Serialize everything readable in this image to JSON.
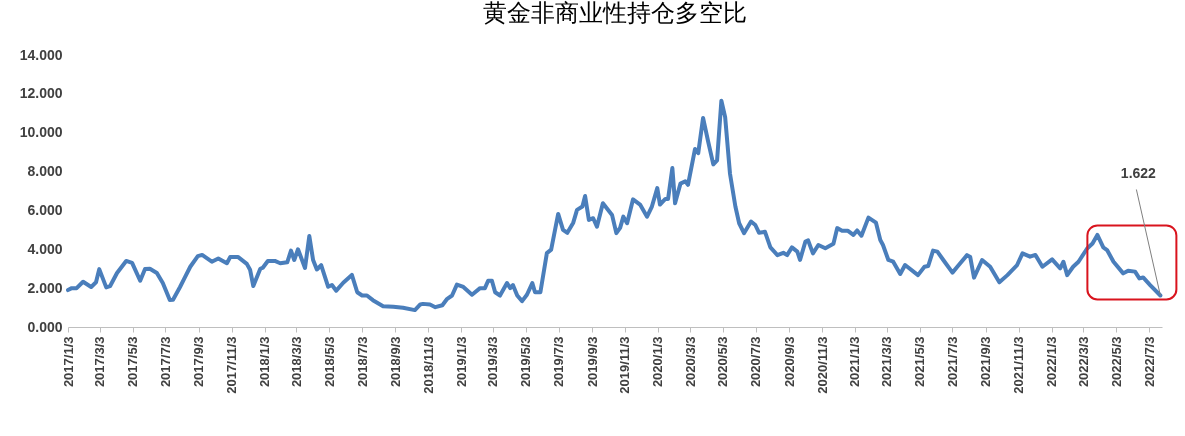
{
  "chart_data": {
    "type": "line",
    "title": "黄金非商业性持仓多空比",
    "color": "#4a7ebb",
    "x": [
      "2017-01-03",
      "2017-01-10",
      "2017-01-19",
      "2017-01-31",
      "2017-02-15",
      "2017-02-24",
      "2017-03-02",
      "2017-03-15",
      "2017-03-22",
      "2017-04-04",
      "2017-04-21",
      "2017-05-02",
      "2017-05-17",
      "2017-05-26",
      "2017-06-04",
      "2017-06-17",
      "2017-06-28",
      "2017-07-11",
      "2017-07-17",
      "2017-07-30",
      "2017-08-08",
      "2017-08-18",
      "2017-09-01",
      "2017-09-09",
      "2017-09-27",
      "2017-10-09",
      "2017-10-25",
      "2017-10-31",
      "2017-11-15",
      "2017-12-01",
      "2017-12-07",
      "2017-12-13",
      "2017-12-26",
      "2017-12-31",
      "2018-01-09",
      "2018-01-22",
      "2018-02-01",
      "2018-02-14",
      "2018-02-21",
      "2018-02-27",
      "2018-03-06",
      "2018-03-19",
      "2018-03-27",
      "2018-04-03",
      "2018-04-10",
      "2018-04-18",
      "2018-05-01",
      "2018-05-08",
      "2018-05-16",
      "2018-05-29",
      "2018-06-14",
      "2018-06-24",
      "2018-07-03",
      "2018-07-12",
      "2018-07-23",
      "2018-08-11",
      "2018-08-30",
      "2018-09-17",
      "2018-10-09",
      "2018-10-19",
      "2018-10-24",
      "2018-11-06",
      "2018-11-16",
      "2018-11-29",
      "2018-12-08",
      "2018-12-17",
      "2018-12-26",
      "2019-01-07",
      "2019-01-23",
      "2019-02-07",
      "2019-02-16",
      "2019-02-22",
      "2019-03-01",
      "2019-03-07",
      "2019-03-16",
      "2019-03-29",
      "2019-04-04",
      "2019-04-09",
      "2019-04-17",
      "2019-04-26",
      "2019-05-05",
      "2019-05-15",
      "2019-05-20",
      "2019-05-30",
      "2019-06-11",
      "2019-06-19",
      "2019-07-02",
      "2019-07-11",
      "2019-07-19",
      "2019-07-30",
      "2019-08-06",
      "2019-08-16",
      "2019-08-21",
      "2019-08-28",
      "2019-09-05",
      "2019-09-12",
      "2019-09-23",
      "2019-10-10",
      "2019-10-18",
      "2019-10-25",
      "2019-10-31",
      "2019-11-07",
      "2019-11-18",
      "2019-12-01",
      "2019-12-14",
      "2019-12-23",
      "2020-01-02",
      "2020-01-07",
      "2020-01-17",
      "2020-01-22",
      "2020-01-30",
      "2020-02-04",
      "2020-02-14",
      "2020-02-23",
      "2020-02-28",
      "2020-03-12",
      "2020-03-18",
      "2020-03-27",
      "2020-04-05",
      "2020-04-15",
      "2020-04-22",
      "2020-04-30",
      "2020-05-07",
      "2020-05-16",
      "2020-05-26",
      "2020-06-02",
      "2020-06-11",
      "2020-06-24",
      "2020-07-02",
      "2020-07-09",
      "2020-07-20",
      "2020-07-30",
      "2020-08-12",
      "2020-08-23",
      "2020-08-30",
      "2020-09-08",
      "2020-09-18",
      "2020-09-23",
      "2020-10-03",
      "2020-10-08",
      "2020-10-17",
      "2020-10-27",
      "2020-11-09",
      "2020-11-24",
      "2020-12-01",
      "2020-12-10",
      "2020-12-21",
      "2020-12-31",
      "2021-01-07",
      "2021-01-15",
      "2021-01-28",
      "2021-02-11",
      "2021-02-19",
      "2021-02-24",
      "2021-03-06",
      "2021-03-15",
      "2021-03-28",
      "2021-04-06",
      "2021-04-30",
      "2021-05-12",
      "2021-05-19",
      "2021-05-28",
      "2021-06-05",
      "2021-06-16",
      "2021-07-03",
      "2021-07-12",
      "2021-07-30",
      "2021-08-05",
      "2021-08-12",
      "2021-08-27",
      "2021-09-11",
      "2021-09-28",
      "2021-10-13",
      "2021-10-31",
      "2021-11-10",
      "2021-11-24",
      "2021-12-04",
      "2021-12-17",
      "2022-01-04",
      "2022-01-19",
      "2022-01-25",
      "2022-02-01",
      "2022-02-12",
      "2022-02-22",
      "2022-03-10",
      "2022-03-20",
      "2022-03-29",
      "2022-04-09",
      "2022-04-16",
      "2022-04-28",
      "2022-05-16",
      "2022-05-25",
      "2022-06-07",
      "2022-06-15",
      "2022-06-22",
      "2022-07-05",
      "2022-07-24"
    ],
    "values": [
      1.9,
      2.0,
      2.0,
      2.33,
      2.06,
      2.3,
      2.98,
      2.04,
      2.1,
      2.78,
      3.4,
      3.3,
      2.38,
      2.98,
      3.0,
      2.78,
      2.26,
      1.39,
      1.4,
      2.06,
      2.55,
      3.1,
      3.65,
      3.71,
      3.36,
      3.53,
      3.28,
      3.6,
      3.6,
      3.25,
      2.95,
      2.11,
      3.0,
      3.06,
      3.4,
      3.4,
      3.28,
      3.33,
      3.93,
      3.45,
      4.0,
      3.04,
      4.68,
      3.45,
      2.96,
      3.18,
      2.07,
      2.16,
      1.87,
      2.28,
      2.68,
      1.79,
      1.62,
      1.62,
      1.38,
      1.07,
      1.04,
      0.99,
      0.87,
      1.16,
      1.19,
      1.16,
      1.02,
      1.12,
      1.45,
      1.62,
      2.18,
      2.06,
      1.66,
      2.0,
      2.0,
      2.38,
      2.38,
      1.79,
      1.62,
      2.26,
      2.0,
      2.16,
      1.62,
      1.33,
      1.66,
      2.26,
      1.79,
      1.79,
      3.8,
      3.98,
      5.82,
      5.0,
      4.85,
      5.37,
      6.03,
      6.2,
      6.74,
      5.51,
      5.6,
      5.16,
      6.37,
      5.77,
      4.83,
      5.1,
      5.68,
      5.34,
      6.57,
      6.3,
      5.68,
      6.2,
      7.15,
      6.3,
      6.59,
      6.59,
      8.18,
      6.37,
      7.38,
      7.5,
      7.32,
      9.16,
      8.95,
      10.76,
      9.6,
      8.37,
      8.58,
      11.65,
      10.8,
      7.89,
      6.2,
      5.34,
      4.83,
      5.43,
      5.25,
      4.85,
      4.9,
      4.1,
      3.7,
      3.82,
      3.7,
      4.1,
      3.88,
      3.45,
      4.4,
      4.46,
      3.79,
      4.22,
      4.05,
      4.28,
      5.09,
      4.95,
      4.95,
      4.74,
      4.97,
      4.7,
      5.63,
      5.37,
      4.48,
      4.22,
      3.45,
      3.36,
      2.73,
      3.19,
      2.67,
      3.1,
      3.14,
      3.93,
      3.88,
      3.45,
      2.8,
      3.1,
      3.7,
      3.6,
      2.54,
      3.45,
      3.1,
      2.3,
      2.67,
      3.19,
      3.79,
      3.62,
      3.71,
      3.1,
      3.48,
      3.02,
      3.36,
      2.67,
      3.1,
      3.36,
      4.04,
      4.3,
      4.74,
      4.1,
      3.96,
      3.36,
      2.76,
      2.9,
      2.85,
      2.5,
      2.55,
      2.16,
      1.622
    ],
    "xlim": [
      "2017-01-03",
      "2022-07-27"
    ],
    "xticks": [
      {
        "value": "2017-01-03",
        "label": "2017/1/3"
      },
      {
        "value": "2017-03-03",
        "label": "2017/3/3"
      },
      {
        "value": "2017-05-03",
        "label": "2017/5/3"
      },
      {
        "value": "2017-07-03",
        "label": "2017/7/3"
      },
      {
        "value": "2017-09-03",
        "label": "2017/9/3"
      },
      {
        "value": "2017-11-03",
        "label": "2017/11/3"
      },
      {
        "value": "2018-01-03",
        "label": "2018/1/3"
      },
      {
        "value": "2018-03-03",
        "label": "2018/3/3"
      },
      {
        "value": "2018-05-03",
        "label": "2018/5/3"
      },
      {
        "value": "2018-07-03",
        "label": "2018/7/3"
      },
      {
        "value": "2018-09-03",
        "label": "2018/9/3"
      },
      {
        "value": "2018-11-03",
        "label": "2018/11/3"
      },
      {
        "value": "2019-01-03",
        "label": "2019/1/3"
      },
      {
        "value": "2019-03-03",
        "label": "2019/3/3"
      },
      {
        "value": "2019-05-03",
        "label": "2019/5/3"
      },
      {
        "value": "2019-07-03",
        "label": "2019/7/3"
      },
      {
        "value": "2019-09-03",
        "label": "2019/9/3"
      },
      {
        "value": "2019-11-03",
        "label": "2019/11/3"
      },
      {
        "value": "2020-01-03",
        "label": "2020/1/3"
      },
      {
        "value": "2020-03-03",
        "label": "2020/3/3"
      },
      {
        "value": "2020-05-03",
        "label": "2020/5/3"
      },
      {
        "value": "2020-07-03",
        "label": "2020/7/3"
      },
      {
        "value": "2020-09-03",
        "label": "2020/9/3"
      },
      {
        "value": "2020-11-03",
        "label": "2020/11/3"
      },
      {
        "value": "2021-01-03",
        "label": "2021/1/3"
      },
      {
        "value": "2021-03-03",
        "label": "2021/3/3"
      },
      {
        "value": "2021-05-03",
        "label": "2021/5/3"
      },
      {
        "value": "2021-07-03",
        "label": "2021/7/3"
      },
      {
        "value": "2021-09-03",
        "label": "2021/9/3"
      },
      {
        "value": "2021-11-03",
        "label": "2021/11/3"
      },
      {
        "value": "2022-01-03",
        "label": "2022/1/3"
      },
      {
        "value": "2022-03-03",
        "label": "2022/3/3"
      },
      {
        "value": "2022-05-03",
        "label": "2022/5/3"
      },
      {
        "value": "2022-07-03",
        "label": "2022/7/3"
      }
    ],
    "ylim": [
      0,
      14
    ],
    "yticks": [
      {
        "value": 0,
        "label": "0.000"
      },
      {
        "value": 2,
        "label": "2.000"
      },
      {
        "value": 4,
        "label": "4.000"
      },
      {
        "value": 6,
        "label": "6.000"
      },
      {
        "value": 8,
        "label": "8.000"
      },
      {
        "value": 10,
        "label": "10.000"
      },
      {
        "value": 12,
        "label": "12.000"
      },
      {
        "value": 14,
        "label": "14.000"
      }
    ],
    "annotations": [
      {
        "text": "1.622",
        "x": "2022-07-24",
        "y": 1.622
      }
    ]
  }
}
